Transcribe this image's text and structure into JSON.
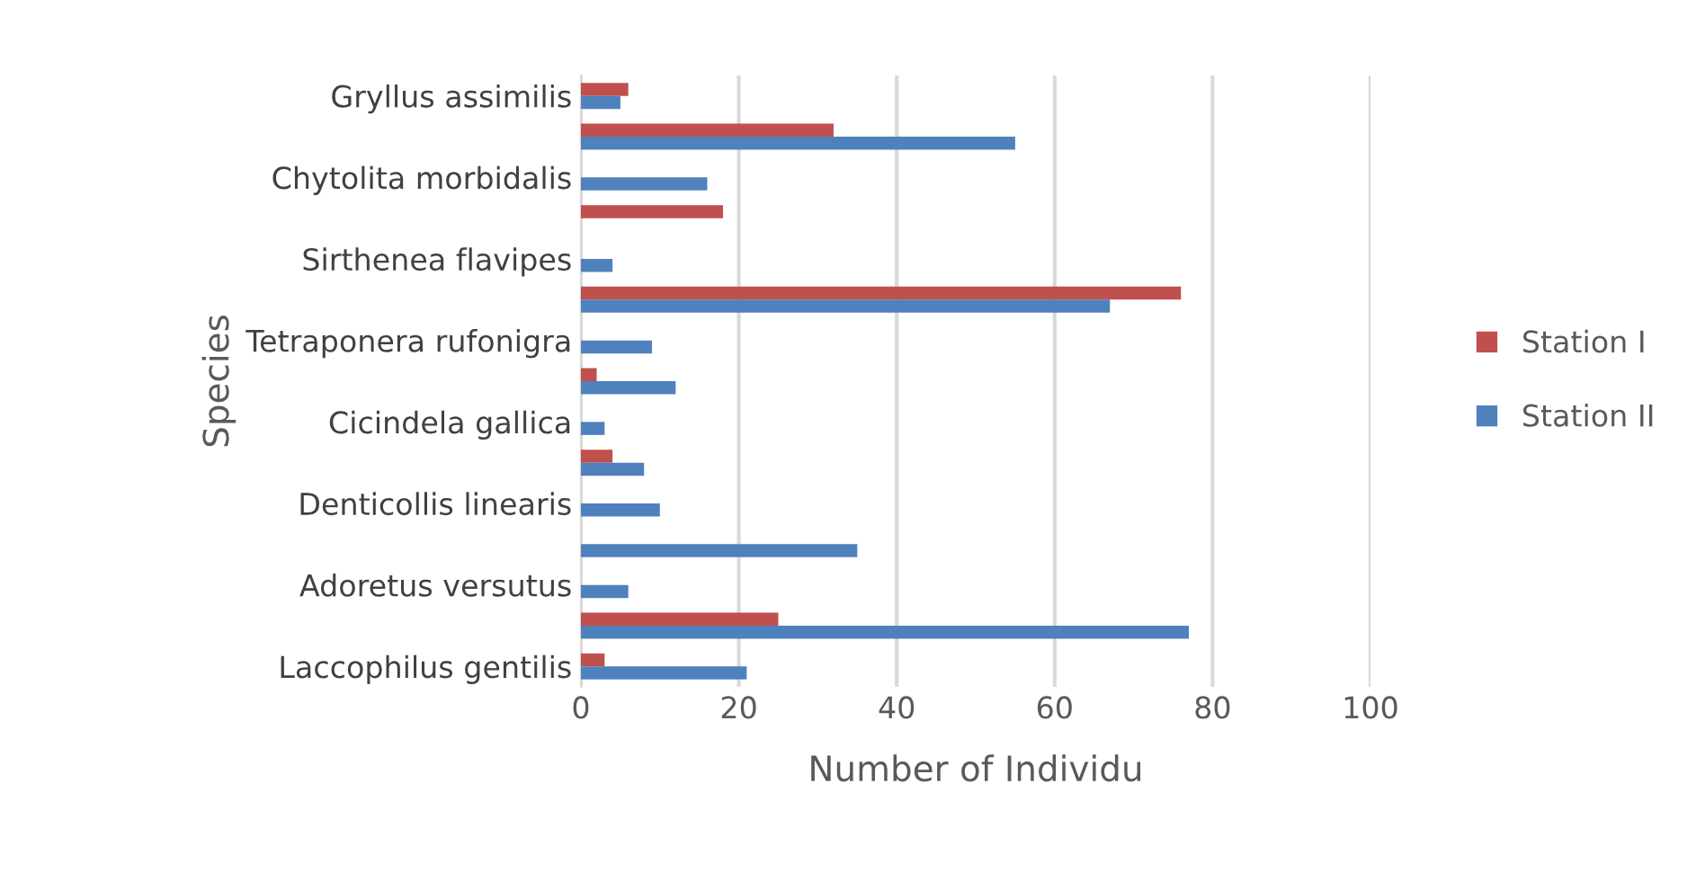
{
  "chart_data": {
    "type": "bar",
    "orientation": "horizontal",
    "xlabel": "Number of Individu",
    "ylabel": "Species",
    "categories": [
      "Gryllus assimilis",
      null,
      "Chytolita morbidalis",
      null,
      "Sirthenea flavipes",
      null,
      "Tetraponera rufonigra",
      null,
      "Cicindela gallica",
      null,
      "Denticollis linearis",
      null,
      "Adoretus versutus",
      null,
      "Laccophilus gentilis"
    ],
    "series": [
      {
        "name": "Station I",
        "color": "#c0504d",
        "values": [
          6,
          32,
          0,
          18,
          0,
          76,
          0,
          2,
          0,
          4,
          0,
          0,
          0,
          25,
          3
        ]
      },
      {
        "name": "Station II",
        "color": "#4f81bd",
        "values": [
          5,
          55,
          16,
          0,
          4,
          67,
          9,
          12,
          3,
          8,
          10,
          35,
          6,
          77,
          21
        ]
      }
    ],
    "xlim": [
      0,
      100
    ],
    "xticks": [
      0,
      20,
      40,
      60,
      80,
      100
    ],
    "grid": "x",
    "legend": "right"
  }
}
